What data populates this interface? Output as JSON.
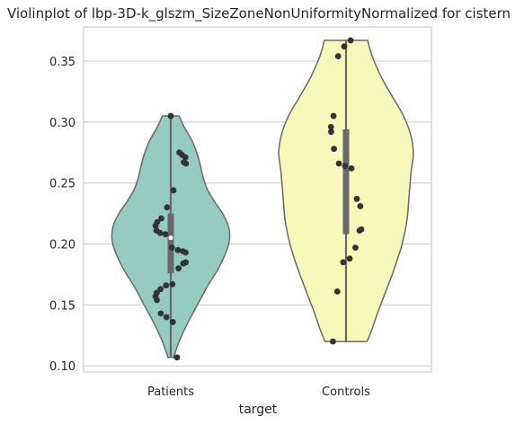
{
  "chart_data": {
    "type": "violin",
    "title": "Violinplot of lbp-3D-k_glszm_SizeZoneNonUniformityNormalized for cistern",
    "xlabel": "target",
    "ylabel": "",
    "categories": [
      "Patients",
      "Controls"
    ],
    "ylim": [
      0.095,
      0.378
    ],
    "yticks": [
      0.1,
      0.15,
      0.2,
      0.25,
      0.3,
      0.35
    ],
    "ytick_labels": [
      "0.10",
      "0.15",
      "0.20",
      "0.25",
      "0.30",
      "0.35"
    ],
    "grid": "horizontal",
    "colors": {
      "Patients": "#96cbc2",
      "Controls": "#f8f8bb",
      "outline": "#696969",
      "box": "#696969",
      "points": "#333333",
      "grid": "#cccccc",
      "frame": "#cccccc"
    },
    "series": [
      {
        "name": "Patients",
        "min": 0.107,
        "max": 0.305,
        "q1": 0.176,
        "median": 0.205,
        "q3": 0.225,
        "density": [
          [
            0.107,
            0.04
          ],
          [
            0.12,
            0.12
          ],
          [
            0.135,
            0.24
          ],
          [
            0.15,
            0.38
          ],
          [
            0.165,
            0.52
          ],
          [
            0.18,
            0.68
          ],
          [
            0.195,
            0.8
          ],
          [
            0.205,
            0.84
          ],
          [
            0.215,
            0.82
          ],
          [
            0.225,
            0.74
          ],
          [
            0.235,
            0.62
          ],
          [
            0.245,
            0.52
          ],
          [
            0.255,
            0.46
          ],
          [
            0.265,
            0.42
          ],
          [
            0.275,
            0.37
          ],
          [
            0.285,
            0.3
          ],
          [
            0.295,
            0.2
          ],
          [
            0.305,
            0.12
          ]
        ],
        "points": [
          0.305,
          0.107,
          0.273,
          0.271,
          0.266,
          0.267,
          0.275,
          0.244,
          0.23,
          0.221,
          0.218,
          0.215,
          0.211,
          0.209,
          0.208,
          0.197,
          0.195,
          0.194,
          0.193,
          0.185,
          0.184,
          0.18,
          0.167,
          0.166,
          0.163,
          0.16,
          0.157,
          0.154,
          0.143,
          0.14,
          0.136
        ]
      },
      {
        "name": "Controls",
        "min": 0.12,
        "max": 0.367,
        "q1": 0.208,
        "median": 0.264,
        "q3": 0.294,
        "density": [
          [
            0.12,
            0.3
          ],
          [
            0.13,
            0.37
          ],
          [
            0.145,
            0.46
          ],
          [
            0.16,
            0.56
          ],
          [
            0.18,
            0.69
          ],
          [
            0.2,
            0.8
          ],
          [
            0.22,
            0.87
          ],
          [
            0.24,
            0.9
          ],
          [
            0.26,
            0.93
          ],
          [
            0.275,
            0.96
          ],
          [
            0.29,
            0.92
          ],
          [
            0.305,
            0.82
          ],
          [
            0.32,
            0.67
          ],
          [
            0.335,
            0.52
          ],
          [
            0.35,
            0.4
          ],
          [
            0.36,
            0.34
          ],
          [
            0.367,
            0.31
          ]
        ],
        "points": [
          0.367,
          0.362,
          0.354,
          0.305,
          0.296,
          0.292,
          0.278,
          0.266,
          0.264,
          0.262,
          0.237,
          0.231,
          0.212,
          0.211,
          0.197,
          0.188,
          0.185,
          0.161,
          0.12
        ]
      }
    ]
  }
}
